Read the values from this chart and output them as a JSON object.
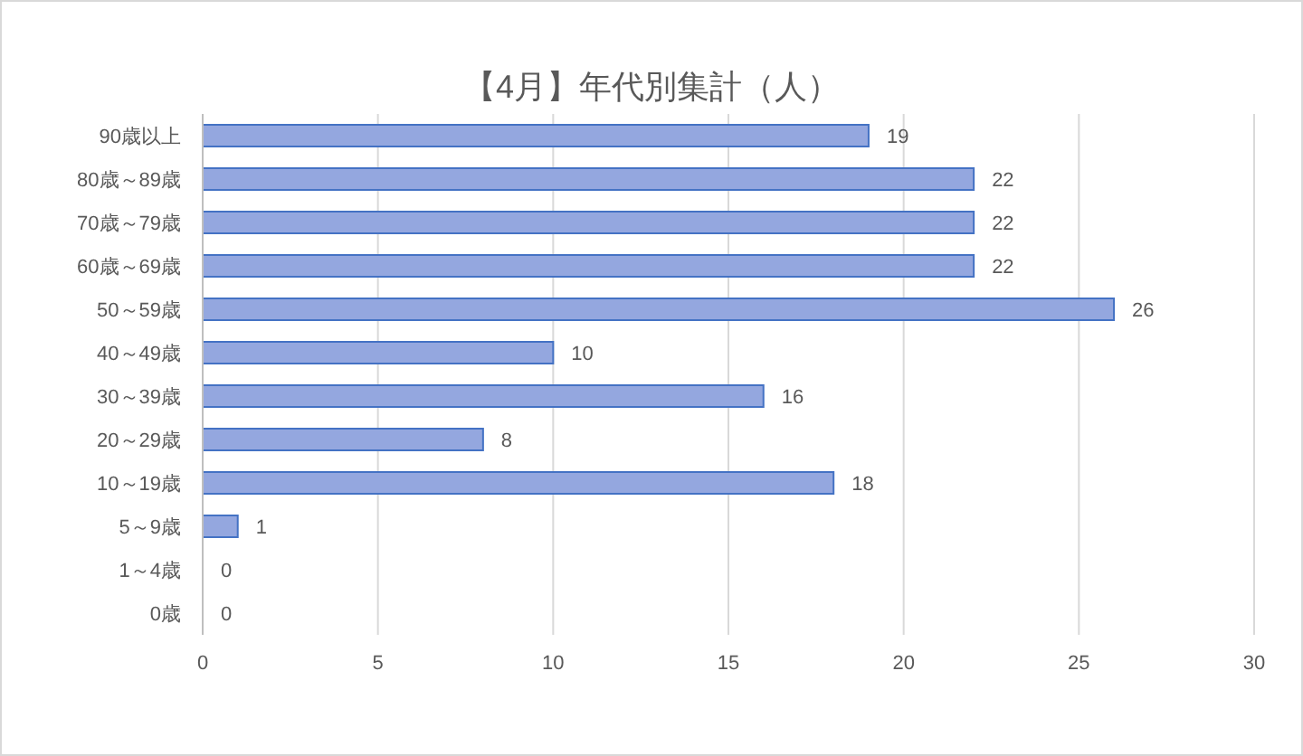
{
  "chart_data": {
    "type": "bar",
    "orientation": "horizontal",
    "title": "【4月】年代別集計（人）",
    "categories": [
      "90歳以上",
      "80歳～89歳",
      "70歳～79歳",
      "60歳～69歳",
      "50～59歳",
      "40～49歳",
      "30～39歳",
      "20～29歳",
      "10～19歳",
      "5～9歳",
      "1～4歳",
      "0歳"
    ],
    "values": [
      19,
      22,
      22,
      22,
      26,
      10,
      16,
      8,
      18,
      1,
      0,
      0
    ],
    "color": "#94a7df",
    "xlim": [
      0,
      30
    ],
    "xticks": [
      0,
      5,
      10,
      15,
      20,
      25,
      30
    ],
    "grid": "x",
    "data_labels": true
  }
}
